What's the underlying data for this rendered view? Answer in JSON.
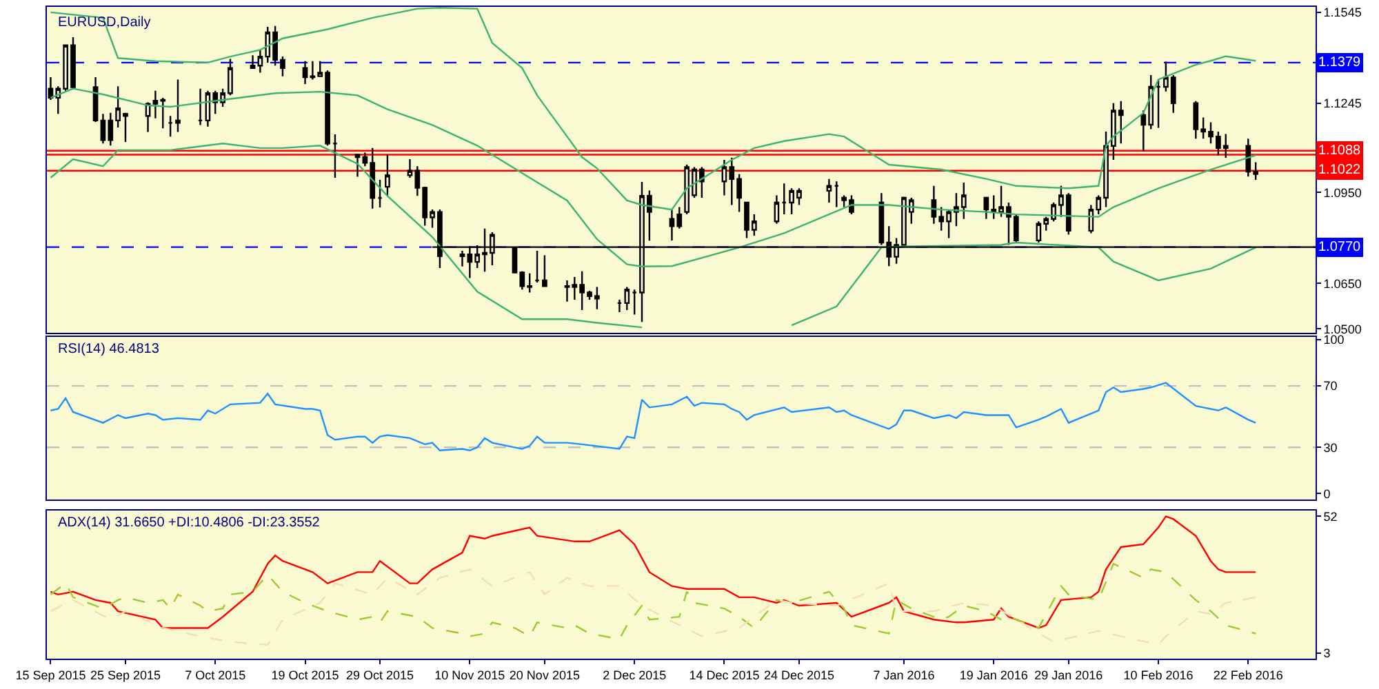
{
  "chart_data": [
    {
      "type": "candlestick",
      "title": "EURUSD,Daily",
      "x": [
        "2015-09-15",
        "2015-09-16",
        "2015-09-17",
        "2015-09-18",
        "2015-09-21",
        "2015-09-22",
        "2015-09-23",
        "2015-09-24",
        "2015-09-25",
        "2015-09-28",
        "2015-09-29",
        "2015-09-30",
        "2015-10-01",
        "2015-10-02",
        "2015-10-05",
        "2015-10-06",
        "2015-10-07",
        "2015-10-08",
        "2015-10-09",
        "2015-10-12",
        "2015-10-13",
        "2015-10-14",
        "2015-10-15",
        "2015-10-16",
        "2015-10-19",
        "2015-10-20",
        "2015-10-21",
        "2015-10-22",
        "2015-10-23",
        "2015-10-26",
        "2015-10-27",
        "2015-10-28",
        "2015-10-29",
        "2015-10-30",
        "2015-11-02",
        "2015-11-03",
        "2015-11-04",
        "2015-11-05",
        "2015-11-06",
        "2015-11-09",
        "2015-11-10",
        "2015-11-11",
        "2015-11-12",
        "2015-11-13",
        "2015-11-16",
        "2015-11-17",
        "2015-11-18",
        "2015-11-19",
        "2015-11-20",
        "2015-11-23",
        "2015-11-24",
        "2015-11-25",
        "2015-11-26",
        "2015-11-27",
        "2015-11-30",
        "2015-12-01",
        "2015-12-02",
        "2015-12-03",
        "2015-12-04",
        "2015-12-07",
        "2015-12-08",
        "2015-12-09",
        "2015-12-10",
        "2015-12-11",
        "2015-12-14",
        "2015-12-15",
        "2015-12-16",
        "2015-12-17",
        "2015-12-18",
        "2015-12-21",
        "2015-12-22",
        "2015-12-23",
        "2015-12-24",
        "2015-12-28",
        "2015-12-29",
        "2015-12-30",
        "2015-12-31",
        "2016-01-04",
        "2016-01-05",
        "2016-01-06",
        "2016-01-07",
        "2016-01-08",
        "2016-01-11",
        "2016-01-12",
        "2016-01-13",
        "2016-01-14",
        "2016-01-15",
        "2016-01-18",
        "2016-01-19",
        "2016-01-20",
        "2016-01-21",
        "2016-01-22",
        "2016-01-25",
        "2016-01-26",
        "2016-01-27",
        "2016-01-28",
        "2016-01-29",
        "2016-02-01",
        "2016-02-02",
        "2016-02-03",
        "2016-02-04",
        "2016-02-05",
        "2016-02-08",
        "2016-02-09",
        "2016-02-10",
        "2016-02-11",
        "2016-02-12",
        "2016-02-15",
        "2016-02-16",
        "2016-02-17",
        "2016-02-18",
        "2016-02-19",
        "2016-02-22",
        "2016-02-23"
      ],
      "ohlc": [
        [
          1.1293,
          1.1331,
          1.1256,
          1.1263
        ],
        [
          1.1263,
          1.1301,
          1.121,
          1.1293
        ],
        [
          1.1293,
          1.1439,
          1.1286,
          1.1436
        ],
        [
          1.1436,
          1.1463,
          1.1293,
          1.1298
        ],
        [
          1.1298,
          1.1331,
          1.1183,
          1.1188
        ],
        [
          1.1188,
          1.121,
          1.1112,
          1.1123
        ],
        [
          1.1188,
          1.1213,
          1.1105,
          1.1123
        ],
        [
          1.1188,
          1.1301,
          1.1165,
          1.1228
        ],
        [
          1.121,
          1.1213,
          1.1117,
          1.1203
        ],
        [
          1.1203,
          1.1248,
          1.115,
          1.1243
        ],
        [
          1.1243,
          1.1286,
          1.1195,
          1.1253
        ],
        [
          1.1253,
          1.1263,
          1.1162,
          1.1256
        ],
        [
          1.118,
          1.1203,
          1.1135,
          1.118
        ],
        [
          1.118,
          1.1323,
          1.115,
          1.1188
        ],
        [
          1.1188,
          1.1293,
          1.1173,
          1.1188
        ],
        [
          1.1188,
          1.1286,
          1.1168,
          1.1278
        ],
        [
          1.1278,
          1.1286,
          1.121,
          1.1248
        ],
        [
          1.1248,
          1.1293,
          1.1233,
          1.1278
        ],
        [
          1.1278,
          1.1391,
          1.1271,
          1.1361
        ],
        [
          1.1361,
          1.1403,
          1.1361,
          1.1369
        ],
        [
          1.1369,
          1.1421,
          1.1346,
          1.1399
        ],
        [
          1.1399,
          1.1497,
          1.1379,
          1.1479
        ],
        [
          1.1479,
          1.15,
          1.1369,
          1.1388
        ],
        [
          1.1388,
          1.1399,
          1.1334,
          1.1361
        ],
        [
          1.1361,
          1.1384,
          1.1308,
          1.1331
        ],
        [
          1.1331,
          1.1384,
          1.1323,
          1.1334
        ],
        [
          1.1334,
          1.1384,
          1.1334,
          1.1346
        ],
        [
          1.1346,
          1.1353,
          1.1105,
          1.1112
        ],
        [
          1.1112,
          1.1142,
          1.0999,
          1.1112
        ],
        [
          1.1075,
          1.1075,
          1.1002,
          1.1067
        ],
        [
          1.1067,
          1.1082,
          1.1037,
          1.1048
        ],
        [
          1.1048,
          1.1097,
          1.0897,
          1.0932
        ],
        [
          1.0932,
          1.0992,
          1.0901,
          1.0932
        ],
        [
          1.0969,
          1.1075,
          1.0939,
          1.1007
        ],
        [
          1.1007,
          1.106,
          1.0999,
          1.1022
        ],
        [
          1.1022,
          1.1037,
          1.0939,
          1.0966
        ],
        [
          1.0966,
          1.0969,
          1.0841,
          1.0868
        ],
        [
          1.0868,
          1.0894,
          1.0834,
          1.0886
        ],
        [
          1.0886,
          1.0894,
          1.0701,
          1.074
        ],
        [
          1.074,
          1.0758,
          1.0706,
          1.0746
        ],
        [
          1.0746,
          1.0773,
          1.0668,
          1.0721
        ],
        [
          1.0721,
          1.0776,
          1.0701,
          1.0746
        ],
        [
          1.0746,
          1.0831,
          1.0689,
          1.0751
        ],
        [
          1.0751,
          1.0819,
          1.071,
          1.0811
        ],
        [
          1.0766,
          1.0766,
          1.0683,
          1.0686
        ],
        [
          1.0686,
          1.069,
          1.063,
          1.0641
        ],
        [
          1.0641,
          1.0683,
          1.062,
          1.0638
        ],
        [
          1.066,
          1.0758,
          1.0653,
          1.066
        ],
        [
          1.066,
          1.0743,
          1.0638,
          1.0641
        ],
        [
          1.0641,
          1.066,
          1.059,
          1.0638
        ],
        [
          1.0638,
          1.0671,
          1.0596,
          1.0645
        ],
        [
          1.0645,
          1.069,
          1.0562,
          1.062
        ],
        [
          1.062,
          1.0626,
          1.0596,
          1.0608
        ],
        [
          1.0608,
          1.0638,
          1.0565,
          1.06
        ],
        [
          1.0585,
          1.0596,
          1.0555,
          1.0585
        ],
        [
          1.0585,
          1.0638,
          1.0562,
          1.063
        ],
        [
          1.062,
          1.063,
          1.0547,
          1.062
        ],
        [
          1.062,
          1.0985,
          1.0523,
          1.0939
        ],
        [
          1.0939,
          1.0957,
          1.0791,
          1.0886
        ],
        [
          1.0863,
          1.0894,
          1.0792,
          1.0839
        ],
        [
          1.0878,
          1.0902,
          1.0831,
          1.0839
        ],
        [
          1.0886,
          1.1042,
          1.0878,
          1.1034
        ],
        [
          1.0941,
          1.1034,
          1.0933,
          1.1026
        ],
        [
          1.1026,
          1.1034,
          1.0933,
          1.0987
        ],
        [
          1.0987,
          1.1058,
          1.0941,
          1.1034
        ],
        [
          1.1034,
          1.1065,
          1.0909,
          1.0995
        ],
        [
          1.0995,
          1.1011,
          1.0886,
          1.0933
        ],
        [
          1.0917,
          1.0917,
          1.08,
          1.0827
        ],
        [
          1.0827,
          1.0878,
          1.0808,
          1.0855
        ],
        [
          1.0855,
          1.0941,
          1.0847,
          1.0917
        ],
        [
          1.0917,
          1.098,
          1.0878,
          1.0917
        ],
        [
          1.0917,
          1.0964,
          1.0878,
          1.0956
        ],
        [
          1.0933,
          1.0964,
          1.0909,
          1.0956
        ],
        [
          1.0956,
          1.0995,
          1.0917,
          1.0972
        ],
        [
          1.0972,
          1.0987,
          1.0902,
          1.0972
        ],
        [
          1.0933,
          1.0941,
          1.0902,
          1.0925
        ],
        [
          1.0925,
          1.0941,
          1.0878,
          1.0886
        ],
        [
          1.0917,
          1.0948,
          1.0777,
          1.0785
        ],
        [
          1.0785,
          1.0839,
          1.0707,
          1.0738
        ],
        [
          1.0738,
          1.08,
          1.0715,
          1.0777
        ],
        [
          1.0777,
          1.0936,
          1.0777,
          1.0933
        ],
        [
          1.0886,
          1.0933,
          1.0847,
          1.0925
        ],
        [
          1.0925,
          1.0972,
          1.0847,
          1.087
        ],
        [
          1.087,
          1.0902,
          1.0824,
          1.0855
        ],
        [
          1.0855,
          1.0894,
          1.08,
          1.0886
        ],
        [
          1.0886,
          1.0948,
          1.0839,
          1.0902
        ],
        [
          1.0902,
          1.0983,
          1.0863,
          1.0941
        ],
        [
          1.0933,
          1.0933,
          1.0863,
          1.0894
        ],
        [
          1.0894,
          1.0941,
          1.0863,
          1.0886
        ],
        [
          1.0886,
          1.0972,
          1.087,
          1.0902
        ],
        [
          1.0902,
          1.0917,
          1.0777,
          1.087
        ],
        [
          1.087,
          1.0878,
          1.0785,
          1.0792
        ],
        [
          1.0792,
          1.0855,
          1.0785,
          1.0847
        ],
        [
          1.0847,
          1.087,
          1.0824,
          1.0863
        ],
        [
          1.0863,
          1.0917,
          1.0855,
          1.0909
        ],
        [
          1.0909,
          1.0972,
          1.087,
          1.0941
        ],
        [
          1.0941,
          1.0948,
          1.0811,
          1.0824
        ],
        [
          1.0824,
          1.0909,
          1.0816,
          1.0894
        ],
        [
          1.0894,
          1.0941,
          1.0878,
          1.0933
        ],
        [
          1.0933,
          1.1151,
          1.0902,
          1.1104
        ],
        [
          1.1104,
          1.1245,
          1.1058,
          1.1221
        ],
        [
          1.1221,
          1.1252,
          1.1112,
          1.1206
        ],
        [
          1.1206,
          1.1221,
          1.1086,
          1.1174
        ],
        [
          1.1174,
          1.1338,
          1.1159,
          1.1299
        ],
        [
          1.1299,
          1.1323,
          1.1164,
          1.1299
        ],
        [
          1.1299,
          1.1382,
          1.1284,
          1.133
        ],
        [
          1.133,
          1.1338,
          1.1213,
          1.1245
        ],
        [
          1.1245,
          1.1252,
          1.1128,
          1.1159
        ],
        [
          1.1159,
          1.1198,
          1.1128,
          1.1151
        ],
        [
          1.1151,
          1.1182,
          1.1112,
          1.1135
        ],
        [
          1.1135,
          1.1151,
          1.1073,
          1.1097
        ],
        [
          1.1097,
          1.1143,
          1.1065,
          1.1104
        ],
        [
          1.1104,
          1.1128,
          1.1003,
          1.1019
        ],
        [
          1.1019,
          1.105,
          1.0992,
          1.1011
        ]
      ],
      "series": [
        {
          "type": "line",
          "color": "#3cb371",
          "x": [
            "2015-09-15",
            "2015-09-22",
            "2015-09-24",
            "2015-09-29",
            "2015-10-06",
            "2015-10-09",
            "2015-10-13",
            "2015-10-16",
            "2015-10-22",
            "2015-10-28",
            "2015-11-03",
            "2015-11-06",
            "2015-11-11",
            "2015-11-13",
            "2015-11-17",
            "2015-11-19",
            "2015-11-23",
            "2015-11-25",
            "2015-11-27",
            "2015-12-01",
            "2015-12-03",
            "2015-12-07",
            "2015-12-09",
            "2015-12-15",
            "2015-12-18",
            "2015-12-22",
            "2015-12-28",
            "2015-12-30",
            "2016-01-05",
            "2016-01-12",
            "2016-01-18",
            "2016-01-22",
            "2016-01-29",
            "2016-02-02",
            "2016-02-03",
            "2016-02-04",
            "2016-02-08",
            "2016-02-10",
            "2016-02-15",
            "2016-02-17",
            "2016-02-19",
            "2016-02-23"
          ],
          "values": [
            1.1545,
            1.1527,
            1.1394,
            1.1384,
            1.1379,
            1.1399,
            1.1421,
            1.1459,
            1.1489,
            1.1527,
            1.1557,
            1.156,
            1.1557,
            1.1444,
            1.1361,
            1.1271,
            1.1135,
            1.1067,
            1.103,
            1.0924,
            1.0909,
            1.0894,
            1.0964,
            1.1058,
            1.1097,
            1.112,
            1.1143,
            1.1135,
            1.1042,
            1.1026,
            1.0995,
            1.0972,
            1.0964,
            1.0972,
            1.1104,
            1.1135,
            1.1213,
            1.1323,
            1.1372,
            1.1385,
            1.14,
            1.1385
          ]
        },
        {
          "type": "line",
          "color": "#3cb371",
          "x": [
            "2015-09-15",
            "2015-09-18",
            "2015-09-22",
            "2015-09-28",
            "2015-10-01",
            "2015-10-08",
            "2015-10-15",
            "2015-10-21",
            "2015-10-26",
            "2015-10-30",
            "2015-11-05",
            "2015-11-11",
            "2015-11-17",
            "2015-11-23",
            "2015-11-27",
            "2015-12-01",
            "2015-12-03",
            "2015-12-07",
            "2015-12-16",
            "2015-12-22",
            "2015-12-31",
            "2016-01-05",
            "2016-01-12",
            "2016-01-18",
            "2016-01-22",
            "2016-02-02",
            "2016-02-04",
            "2016-02-10",
            "2016-02-17",
            "2016-02-23"
          ],
          "values": [
            1.1263,
            1.1293,
            1.1274,
            1.1238,
            1.1233,
            1.1256,
            1.1278,
            1.1283,
            1.1271,
            1.1225,
            1.1173,
            1.1105,
            1.1014,
            1.0924,
            1.0796,
            1.0713,
            1.0706,
            1.0707,
            1.0769,
            1.0816,
            1.0909,
            1.0909,
            1.0894,
            1.0886,
            1.0878,
            1.087,
            1.0902,
            1.0964,
            1.1026,
            1.1073
          ]
        },
        {
          "type": "line",
          "color": "#3cb371",
          "x": [
            "2015-09-15",
            "2015-09-18",
            "2015-09-22",
            "2015-09-24",
            "2015-10-01",
            "2015-10-08",
            "2015-10-13",
            "2015-10-16",
            "2015-10-21",
            "2015-10-26",
            "2015-10-30",
            "2015-11-05",
            "2015-11-11",
            "2015-11-17",
            "2015-11-23",
            "2015-11-27",
            "2015-12-03",
            "2015-12-10",
            "2015-12-23",
            "2015-12-29",
            "2016-01-04",
            "2016-01-07",
            "2016-01-20",
            "2016-01-22",
            "2016-02-02",
            "2016-02-04",
            "2016-02-10",
            "2016-02-17",
            "2016-02-23"
          ],
          "values": [
            1.0999,
            1.106,
            1.1037,
            1.109,
            1.109,
            1.1112,
            1.1097,
            1.1097,
            1.1105,
            1.1045,
            1.0939,
            1.0803,
            1.0623,
            1.0532,
            1.0532,
            1.052,
            1.0505,
            null,
            1.0512,
            1.0574,
            1.0769,
            1.0772,
            1.0777,
            1.0785,
            1.0769,
            1.0722,
            1.066,
            1.0699,
            1.0769
          ]
        },
        {
          "type": "line",
          "color": "#000000",
          "x": [
            "2015-11-05",
            "2016-03-02"
          ],
          "values": [
            1.077,
            1.077
          ]
        }
      ],
      "xlim": [
        "2015-09-14T12:00",
        "2016-03-02"
      ],
      "ylim": [
        1.0487,
        1.1563
      ],
      "yticks": [
        1.1545,
        1.1245,
        {
          "value": 1.095,
          "label": "1.0950"
        },
        {
          "value": 1.065,
          "label": "1.0650"
        },
        {
          "value": 1.05,
          "label": "1.0500"
        }
      ],
      "ref_lines": [
        {
          "axis": "y",
          "value": 1.1379,
          "label": "1.1379",
          "color": "#0000ff",
          "line_style": "dashed"
        },
        {
          "axis": "y",
          "value": 1.1088,
          "label": "1.1088",
          "color": "#ff0000",
          "line_style": "solid"
        },
        {
          "axis": "y",
          "value": 1.1075,
          "label": null,
          "color": "#ff0000",
          "line_style": "solid"
        },
        {
          "axis": "y",
          "value": 1.1022,
          "label": "1.1022",
          "color": "#ff0000",
          "line_style": "solid"
        },
        {
          "axis": "y",
          "value": 1.077,
          "label": "1.0770",
          "color": "#0000ff",
          "line_style": "dashed"
        }
      ],
      "tick_labels": "y"
    },
    {
      "type": "line",
      "title": "RSI(14) 46.4813",
      "series": [
        {
          "color": "#1e90ff",
          "x": [
            "2015-09-15",
            "2015-09-16",
            "2015-09-17",
            "2015-09-18",
            "2015-09-22",
            "2015-09-24",
            "2015-09-25",
            "2015-09-28",
            "2015-09-29",
            "2015-09-30",
            "2015-10-02",
            "2015-10-05",
            "2015-10-06",
            "2015-10-07",
            "2015-10-09",
            "2015-10-13",
            "2015-10-14",
            "2015-10-15",
            "2015-10-19",
            "2015-10-20",
            "2015-10-21",
            "2015-10-22",
            "2015-10-23",
            "2015-10-26",
            "2015-10-27",
            "2015-10-28",
            "2015-10-29",
            "2015-10-30",
            "2015-11-02",
            "2015-11-04",
            "2015-11-05",
            "2015-11-06",
            "2015-11-09",
            "2015-11-10",
            "2015-11-11",
            "2015-11-12",
            "2015-11-13",
            "2015-11-17",
            "2015-11-18",
            "2015-11-19",
            "2015-11-20",
            "2015-11-23",
            "2015-11-25",
            "2015-11-30",
            "2015-12-01",
            "2015-12-02",
            "2015-12-03",
            "2015-12-04",
            "2015-12-07",
            "2015-12-09",
            "2015-12-10",
            "2015-12-11",
            "2015-12-14",
            "2015-12-15",
            "2015-12-16",
            "2015-12-17",
            "2015-12-18",
            "2015-12-22",
            "2015-12-23",
            "2015-12-28",
            "2015-12-29",
            "2015-12-30",
            "2015-12-31",
            "2016-01-05",
            "2016-01-06",
            "2016-01-07",
            "2016-01-08",
            "2016-01-11",
            "2016-01-13",
            "2016-01-14",
            "2016-01-15",
            "2016-01-18",
            "2016-01-20",
            "2016-01-21",
            "2016-01-22",
            "2016-01-25",
            "2016-01-26",
            "2016-01-28",
            "2016-01-29",
            "2016-02-02",
            "2016-02-03",
            "2016-02-04",
            "2016-02-05",
            "2016-02-08",
            "2016-02-09",
            "2016-02-11",
            "2016-02-15",
            "2016-02-16",
            "2016-02-18",
            "2016-02-19",
            "2016-02-22",
            "2016-02-23"
          ],
          "values": [
            54,
            55,
            62,
            53,
            46,
            51,
            49,
            52,
            51,
            48,
            49,
            48,
            54,
            52,
            58,
            59,
            65,
            58,
            55,
            55,
            54,
            38,
            35,
            37,
            37,
            33,
            37,
            38,
            36,
            32,
            33,
            28,
            29,
            28,
            30,
            36,
            33,
            29,
            31,
            37,
            33,
            33,
            32,
            29,
            37,
            36,
            61,
            56,
            58,
            63,
            57,
            59,
            58,
            55,
            53,
            48,
            51,
            56,
            53,
            56,
            53,
            54,
            51,
            42,
            45,
            54,
            54,
            49,
            51,
            49,
            53,
            51,
            51,
            51,
            43,
            48,
            50,
            55,
            46,
            54,
            66,
            69,
            66,
            68,
            69,
            72,
            57,
            56,
            54,
            56,
            48,
            46
          ]
        }
      ],
      "xlim": [
        "2015-09-14T12:00",
        "2016-03-02"
      ],
      "ylim": [
        -4,
        102
      ],
      "yticks": [
        0,
        30,
        70,
        100
      ],
      "ref_lines": [
        {
          "axis": "y",
          "value": 30,
          "label": null,
          "color": "#c0c0c0",
          "line_style": "dashed"
        },
        {
          "axis": "y",
          "value": 70,
          "label": null,
          "color": "#c0c0c0",
          "line_style": "dashed"
        }
      ],
      "tick_labels": "y"
    },
    {
      "type": "line",
      "title": "ADX(14) 31.6650 +DI:10.4806 -DI:23.3552",
      "series": [
        {
          "color": "#ff0000",
          "line_style": "solid",
          "x": [
            "2015-09-15",
            "2015-09-16",
            "2015-09-18",
            "2015-09-21",
            "2015-09-23",
            "2015-09-24",
            "2015-09-29",
            "2015-09-30",
            "2015-10-02",
            "2015-10-06",
            "2015-10-08",
            "2015-10-12",
            "2015-10-14",
            "2015-10-15",
            "2015-10-16",
            "2015-10-20",
            "2015-10-22",
            "2015-10-23",
            "2015-10-26",
            "2015-10-28",
            "2015-10-29",
            "2015-11-02",
            "2015-11-03",
            "2015-11-05",
            "2015-11-09",
            "2015-11-10",
            "2015-11-12",
            "2015-11-13",
            "2015-11-18",
            "2015-11-19",
            "2015-11-24",
            "2015-11-26",
            "2015-11-30",
            "2015-12-02",
            "2015-12-04",
            "2015-12-07",
            "2015-12-09",
            "2015-12-10",
            "2015-12-14",
            "2015-12-16",
            "2015-12-18",
            "2015-12-21",
            "2015-12-22",
            "2015-12-24",
            "2015-12-29",
            "2015-12-31",
            "2016-01-05",
            "2016-01-06",
            "2016-01-07",
            "2016-01-11",
            "2016-01-14",
            "2016-01-15",
            "2016-01-19",
            "2016-01-20",
            "2016-01-21",
            "2016-01-25",
            "2016-01-26",
            "2016-01-28",
            "2016-02-01",
            "2016-02-02",
            "2016-02-03",
            "2016-02-05",
            "2016-02-08",
            "2016-02-10",
            "2016-02-11",
            "2016-02-12",
            "2016-02-15",
            "2016-02-17",
            "2016-02-18",
            "2016-02-19",
            "2016-02-22",
            "2016-02-23"
          ],
          "values": [
            25,
            24,
            25,
            22,
            21,
            18,
            15,
            12,
            12,
            12,
            16,
            25,
            35,
            38,
            36,
            32,
            28,
            29,
            32,
            32,
            36,
            28,
            28,
            33,
            39,
            45,
            44,
            45,
            48,
            45,
            43,
            43,
            47,
            42,
            32,
            27,
            26,
            26,
            26,
            23,
            23,
            21,
            22,
            20,
            21,
            16,
            21,
            23,
            18,
            15,
            14,
            14,
            15,
            19,
            16,
            12,
            13,
            22,
            23,
            25,
            33,
            41,
            42,
            48,
            52,
            51,
            45,
            36,
            33,
            32,
            32,
            32
          ]
        },
        {
          "color": "#9acd32",
          "line_style": "dashed",
          "x": [
            "2015-09-15",
            "2015-09-17",
            "2015-09-18",
            "2015-09-22",
            "2015-09-24",
            "2015-09-25",
            "2015-09-28",
            "2015-09-30",
            "2015-10-01",
            "2015-10-02",
            "2015-10-05",
            "2015-10-06",
            "2015-10-08",
            "2015-10-09",
            "2015-10-12",
            "2015-10-14",
            "2015-10-16",
            "2015-10-19",
            "2015-10-22",
            "2015-10-26",
            "2015-10-28",
            "2015-10-29",
            "2015-10-30",
            "2015-11-03",
            "2015-11-05",
            "2015-11-09",
            "2015-11-10",
            "2015-11-12",
            "2015-11-13",
            "2015-11-16",
            "2015-11-18",
            "2015-11-19",
            "2015-11-23",
            "2015-11-24",
            "2015-11-26",
            "2015-11-30",
            "2015-12-01",
            "2015-12-03",
            "2015-12-04",
            "2015-12-08",
            "2015-12-09",
            "2015-12-10",
            "2015-12-14",
            "2015-12-16",
            "2015-12-18",
            "2015-12-21",
            "2015-12-23",
            "2015-12-28",
            "2015-12-30",
            "2015-12-31",
            "2016-01-05",
            "2016-01-06",
            "2016-01-08",
            "2016-01-12",
            "2016-01-13",
            "2016-01-15",
            "2016-01-18",
            "2016-01-20",
            "2016-01-21",
            "2016-01-25",
            "2016-01-28",
            "2016-01-29",
            "2016-02-02",
            "2016-02-04",
            "2016-02-08",
            "2016-02-09",
            "2016-02-11",
            "2016-02-15",
            "2016-02-17",
            "2016-02-19",
            "2016-02-23"
          ],
          "values": [
            24,
            28,
            23,
            19,
            22,
            23,
            21,
            22,
            19,
            24,
            20,
            18,
            19,
            24,
            25,
            31,
            25,
            21,
            18,
            15,
            16,
            14,
            18,
            16,
            12,
            10,
            9,
            10,
            14,
            12,
            9,
            14,
            12,
            13,
            10,
            8,
            13,
            20,
            15,
            16,
            25,
            21,
            19,
            16,
            12,
            22,
            21,
            25,
            19,
            13,
            10,
            22,
            19,
            15,
            16,
            20,
            18,
            15,
            16,
            12,
            27,
            24,
            22,
            35,
            30,
            33,
            32,
            22,
            18,
            13,
            10
          ]
        },
        {
          "color": "#f5deb3",
          "line_style": "dashed",
          "x": [
            "2015-09-15",
            "2015-09-18",
            "2015-09-23",
            "2015-09-25",
            "2015-09-30",
            "2015-10-05",
            "2015-10-09",
            "2015-10-14",
            "2015-10-16",
            "2015-10-21",
            "2015-10-23",
            "2015-10-28",
            "2015-10-30",
            "2015-11-03",
            "2015-11-06",
            "2015-11-10",
            "2015-11-13",
            "2015-11-18",
            "2015-11-20",
            "2015-11-23",
            "2015-11-26",
            "2015-11-30",
            "2015-12-03",
            "2015-12-08",
            "2015-12-11",
            "2015-12-16",
            "2015-12-21",
            "2015-12-23",
            "2015-12-29",
            "2016-01-05",
            "2016-01-06",
            "2016-01-11",
            "2016-01-15",
            "2016-01-19",
            "2016-01-22",
            "2016-01-27",
            "2016-02-02",
            "2016-02-05",
            "2016-02-10",
            "2016-02-11",
            "2016-02-15",
            "2016-02-17",
            "2016-02-19",
            "2016-02-23"
          ],
          "values": [
            18,
            22,
            15,
            18,
            12,
            9,
            7,
            6,
            15,
            21,
            28,
            24,
            30,
            24,
            30,
            33,
            27,
            32,
            24,
            30,
            27,
            27,
            20,
            13,
            9,
            12,
            22,
            21,
            20,
            28,
            18,
            18,
            21,
            20,
            15,
            7,
            11,
            9,
            6,
            9,
            18,
            17,
            21,
            23
          ]
        }
      ],
      "xlim": [
        "2015-09-14T12:00",
        "2016-03-02"
      ],
      "ylim": [
        1,
        54
      ],
      "yticks": [
        3,
        52
      ],
      "xticks": [
        {
          "value": "2015-09-15",
          "label": "15 Sep 2015"
        },
        {
          "value": "2015-09-25",
          "label": "25 Sep 2015"
        },
        {
          "value": "2015-10-07",
          "label": "7 Oct 2015"
        },
        {
          "value": "2015-10-19",
          "label": "19 Oct 2015"
        },
        {
          "value": "2015-10-29",
          "label": "29 Oct 2015"
        },
        {
          "value": "2015-11-10",
          "label": "10 Nov 2015"
        },
        {
          "value": "2015-11-20",
          "label": "20 Nov 2015"
        },
        {
          "value": "2015-12-02",
          "label": "2 Dec 2015"
        },
        {
          "value": "2015-12-14",
          "label": "14 Dec 2015"
        },
        {
          "value": "2015-12-24",
          "label": "24 Dec 2015"
        },
        {
          "value": "2016-01-07",
          "label": "7 Jan 2016"
        },
        {
          "value": "2016-01-19",
          "label": "19 Jan 2016"
        },
        {
          "value": "2016-01-29",
          "label": "29 Jan 2016"
        },
        {
          "value": "2016-02-10",
          "label": "10 Feb 2016"
        },
        {
          "value": "2016-02-22",
          "label": "22 Feb 2016"
        }
      ]
    }
  ]
}
